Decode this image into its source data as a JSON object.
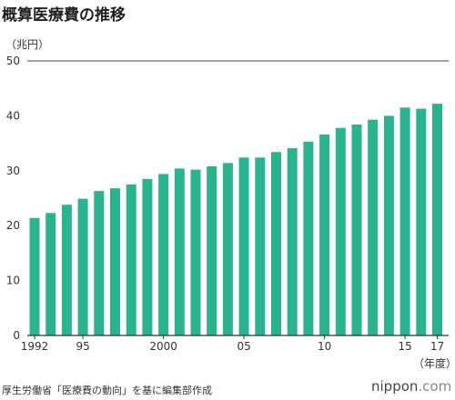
{
  "title": "概算医療費の推移",
  "colors": {
    "bar": "#2bb38f",
    "axis": "#333333",
    "grid": "#444444"
  },
  "chart_data": {
    "type": "bar",
    "title": "概算医療費の推移",
    "ylabel": "（兆円）",
    "xlabel": "（年度）",
    "ylim": [
      0,
      50
    ],
    "yticks": [
      0,
      10,
      20,
      30,
      40,
      50
    ],
    "grid": false,
    "x": [
      1992,
      1993,
      1994,
      1995,
      1996,
      1997,
      1998,
      1999,
      2000,
      2001,
      2002,
      2003,
      2004,
      2005,
      2006,
      2007,
      2008,
      2009,
      2010,
      2011,
      2012,
      2013,
      2014,
      2015,
      2016,
      2017
    ],
    "xtick_labels": [
      {
        "year": 1992,
        "label": "1992"
      },
      {
        "year": 1995,
        "label": "95"
      },
      {
        "year": 2000,
        "label": "2000"
      },
      {
        "year": 2005,
        "label": "05"
      },
      {
        "year": 2010,
        "label": "10"
      },
      {
        "year": 2015,
        "label": "15"
      },
      {
        "year": 2017,
        "label": "17"
      }
    ],
    "values": [
      21.4,
      22.3,
      23.8,
      24.9,
      26.3,
      26.8,
      27.5,
      28.5,
      29.4,
      30.4,
      30.2,
      30.8,
      31.4,
      32.4,
      32.4,
      33.4,
      34.1,
      35.3,
      36.6,
      37.8,
      38.4,
      39.3,
      40.0,
      41.5,
      41.3,
      42.2
    ]
  },
  "source": "厚生労働省「医療費の動向」を基に編集部作成",
  "brand": {
    "name": "nippon",
    "domain": ".com"
  }
}
